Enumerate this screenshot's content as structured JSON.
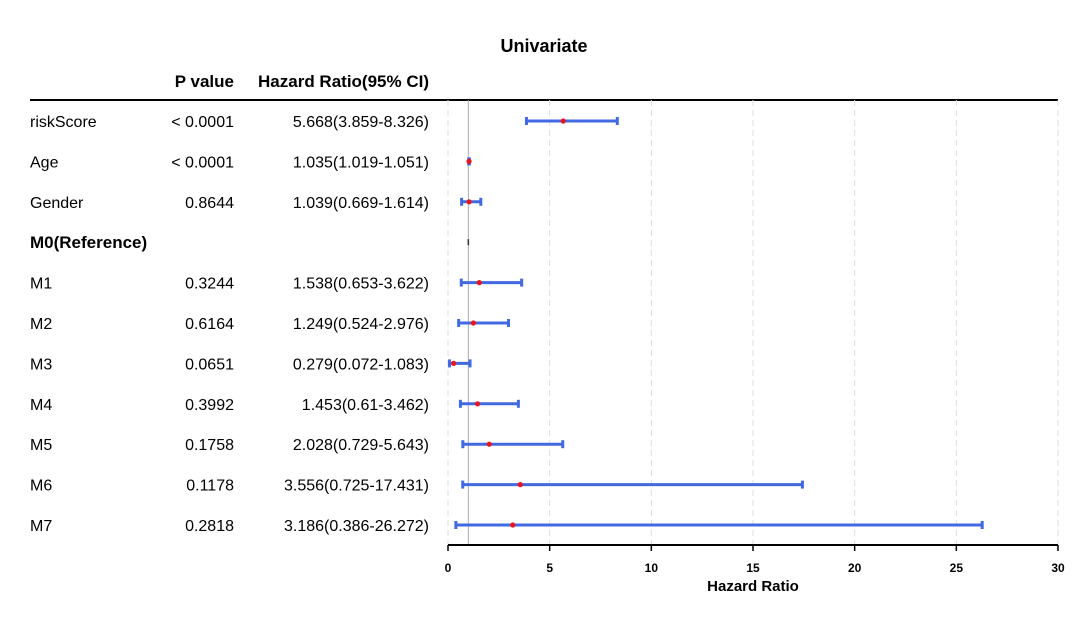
{
  "chart_data": {
    "type": "forest",
    "title": "Univariate",
    "columns": {
      "pvalue": "P value",
      "hr": "Hazard Ratio(95% CI)"
    },
    "xlabel": "Hazard Ratio",
    "xlim": [
      0,
      30
    ],
    "x_ticks": [
      "0",
      "5",
      "10",
      "15",
      "20",
      "25",
      "30"
    ],
    "reference_line": 1,
    "grid": "vertical dashed",
    "colors": {
      "ci": "#4169E1",
      "point": "#E8141E",
      "grid": "#DDDDDD",
      "reference": "#AAAAAA"
    },
    "rows": [
      {
        "label": "riskScore",
        "bold": false,
        "p": "< 0.0001",
        "hr_text": "5.668(3.859-8.326)",
        "hr": 5.668,
        "lo": 3.859,
        "hi": 8.326
      },
      {
        "label": "Age",
        "bold": false,
        "p": "< 0.0001",
        "hr_text": "1.035(1.019-1.051)",
        "hr": 1.035,
        "lo": 1.019,
        "hi": 1.051
      },
      {
        "label": "Gender",
        "bold": false,
        "p": "0.8644",
        "hr_text": "1.039(0.669-1.614)",
        "hr": 1.039,
        "lo": 0.669,
        "hi": 1.614
      },
      {
        "label": "M0(Reference)",
        "bold": true,
        "p": "",
        "hr_text": "",
        "hr": 1,
        "lo": 1,
        "hi": 1
      },
      {
        "label": "M1",
        "bold": false,
        "p": "0.3244",
        "hr_text": "1.538(0.653-3.622)",
        "hr": 1.538,
        "lo": 0.653,
        "hi": 3.622
      },
      {
        "label": "M2",
        "bold": false,
        "p": "0.6164",
        "hr_text": "1.249(0.524-2.976)",
        "hr": 1.249,
        "lo": 0.524,
        "hi": 2.976
      },
      {
        "label": "M3",
        "bold": false,
        "p": "0.0651",
        "hr_text": "0.279(0.072-1.083)",
        "hr": 0.279,
        "lo": 0.072,
        "hi": 1.083
      },
      {
        "label": "M4",
        "bold": false,
        "p": "0.3992",
        "hr_text": "1.453(0.61-3.462)",
        "hr": 1.453,
        "lo": 0.61,
        "hi": 3.462
      },
      {
        "label": "M5",
        "bold": false,
        "p": "0.1758",
        "hr_text": "2.028(0.729-5.643)",
        "hr": 2.028,
        "lo": 0.729,
        "hi": 5.643
      },
      {
        "label": "M6",
        "bold": false,
        "p": "0.1178",
        "hr_text": "3.556(0.725-17.431)",
        "hr": 3.556,
        "lo": 0.725,
        "hi": 17.431
      },
      {
        "label": "M7",
        "bold": false,
        "p": "0.2818",
        "hr_text": "3.186(0.386-26.272)",
        "hr": 3.186,
        "lo": 0.386,
        "hi": 26.272
      }
    ]
  }
}
